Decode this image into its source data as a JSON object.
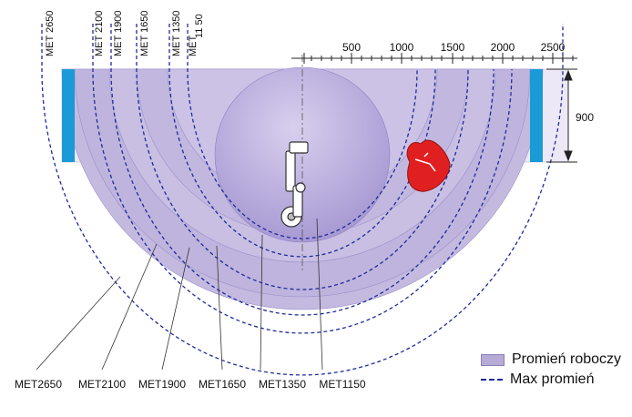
{
  "diagram": {
    "top_labels": [
      "MET 2650",
      "MET 2100",
      "MET 1900",
      "MET 1650",
      "MET 1350",
      "MET",
      "11 50"
    ],
    "bottom_labels": [
      "MET2650",
      "MET2100",
      "MET1900",
      "MET1650",
      "MET1350",
      "MET1150"
    ],
    "scale_ticks": [
      "500",
      "1000",
      "1500",
      "2000",
      "2500"
    ],
    "height_label": "900",
    "colors": {
      "reach_fill": "#b6abd6",
      "max_reach_line": "#1f2a9b",
      "wall": "#1a9ad6",
      "target": "#e02020"
    }
  },
  "legend": {
    "working_radius": "Promień roboczy",
    "max_radius": "Max promień"
  }
}
